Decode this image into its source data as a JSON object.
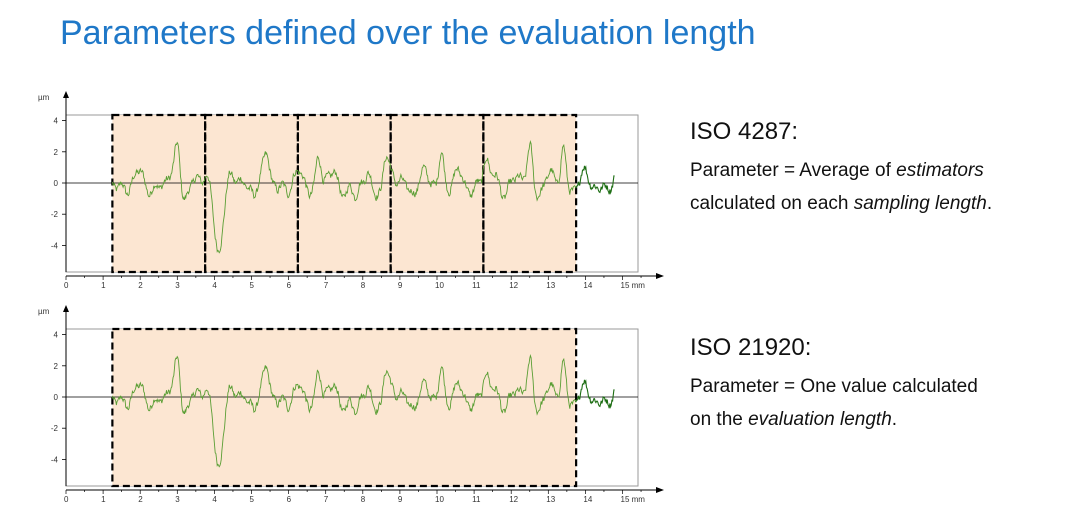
{
  "title": "Parameters defined over the evaluation length",
  "colors": {
    "title": "#1f78c8",
    "profile": "#3c8c1e",
    "shade": "#fce6d2",
    "frame": "#000000"
  },
  "chart_data": [
    {
      "type": "line",
      "yunit": "µm",
      "xunit": "mm",
      "xlim": [
        0,
        15.5
      ],
      "ylim": [
        -5.8,
        4.5
      ],
      "yticks": [
        {
          "v": 4,
          "label": "4"
        },
        {
          "v": 2,
          "label": "2"
        },
        {
          "v": 0,
          "label": "0"
        },
        {
          "v": -2,
          "label": "-2"
        },
        {
          "v": -4,
          "label": "-4"
        }
      ],
      "xticks": [
        {
          "v": 0,
          "label": "0"
        },
        {
          "v": 1,
          "label": "1"
        },
        {
          "v": 2,
          "label": "2"
        },
        {
          "v": 3,
          "label": "3"
        },
        {
          "v": 4,
          "label": "4"
        },
        {
          "v": 5,
          "label": "5"
        },
        {
          "v": 6,
          "label": "6"
        },
        {
          "v": 7,
          "label": "7"
        },
        {
          "v": 8,
          "label": "8"
        },
        {
          "v": 9,
          "label": "9"
        },
        {
          "v": 10,
          "label": "10"
        },
        {
          "v": 11,
          "label": "11"
        },
        {
          "v": 12,
          "label": "12"
        },
        {
          "v": 13,
          "label": "13"
        },
        {
          "v": 14,
          "label": "14"
        },
        {
          "v": 15,
          "label": "15 mm"
        }
      ],
      "regions": [
        [
          1.25,
          3.75
        ],
        [
          3.75,
          6.25
        ],
        [
          6.25,
          8.75
        ],
        [
          8.75,
          11.25
        ],
        [
          11.25,
          13.75
        ]
      ],
      "profile_range": [
        1.25,
        14.8
      ],
      "evaluation_end": 13.75,
      "features": [
        [
          3.0,
          2.3
        ],
        [
          3.2,
          -0.4
        ],
        [
          4.1,
          -3.7
        ],
        [
          5.4,
          1.4
        ],
        [
          6.8,
          1.9
        ],
        [
          7.8,
          -1.3
        ],
        [
          8.6,
          1.7
        ],
        [
          10.1,
          2.4
        ],
        [
          11.3,
          1.5
        ],
        [
          12.5,
          2.1
        ],
        [
          13.4,
          2.3
        ]
      ]
    },
    {
      "type": "line",
      "yunit": "µm",
      "xunit": "mm",
      "xlim": [
        0,
        15.5
      ],
      "ylim": [
        -5.8,
        4.5
      ],
      "yticks": [
        {
          "v": 4,
          "label": "4"
        },
        {
          "v": 2,
          "label": "2"
        },
        {
          "v": 0,
          "label": "0"
        },
        {
          "v": -2,
          "label": "-2"
        },
        {
          "v": -4,
          "label": "-4"
        }
      ],
      "xticks": [
        {
          "v": 0,
          "label": "0"
        },
        {
          "v": 1,
          "label": "1"
        },
        {
          "v": 2,
          "label": "2"
        },
        {
          "v": 3,
          "label": "3"
        },
        {
          "v": 4,
          "label": "4"
        },
        {
          "v": 5,
          "label": "5"
        },
        {
          "v": 6,
          "label": "6"
        },
        {
          "v": 7,
          "label": "7"
        },
        {
          "v": 8,
          "label": "8"
        },
        {
          "v": 9,
          "label": "9"
        },
        {
          "v": 10,
          "label": "10"
        },
        {
          "v": 11,
          "label": "11"
        },
        {
          "v": 12,
          "label": "12"
        },
        {
          "v": 13,
          "label": "13"
        },
        {
          "v": 14,
          "label": "14"
        },
        {
          "v": 15,
          "label": "15 mm"
        }
      ],
      "regions": [
        [
          1.25,
          13.75
        ]
      ],
      "profile_range": [
        1.25,
        14.8
      ],
      "evaluation_end": 13.75,
      "features": [
        [
          3.0,
          2.3
        ],
        [
          3.2,
          -0.4
        ],
        [
          4.1,
          -3.7
        ],
        [
          5.4,
          1.4
        ],
        [
          6.8,
          1.9
        ],
        [
          7.8,
          -1.3
        ],
        [
          8.6,
          1.7
        ],
        [
          10.1,
          2.4
        ],
        [
          11.3,
          1.5
        ],
        [
          12.5,
          2.1
        ],
        [
          13.4,
          2.3
        ]
      ]
    }
  ],
  "descriptions": {
    "top": {
      "standard": "ISO 4287:",
      "line1": {
        "pre": "Parameter = Average of ",
        "em": "estimators",
        "post": ""
      },
      "line2": {
        "pre": "calculated on each ",
        "em": "sampling length",
        "post": "."
      }
    },
    "bottom": {
      "standard": "ISO 21920:",
      "line1": {
        "pre": "Parameter = One value calculated",
        "em": "",
        "post": ""
      },
      "line2": {
        "pre": "on the ",
        "em": "evaluation length",
        "post": "."
      }
    }
  }
}
